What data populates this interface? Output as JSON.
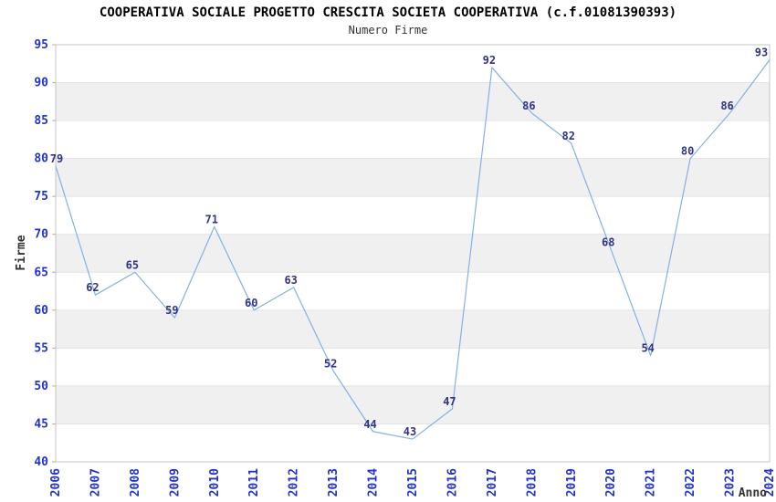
{
  "header": {
    "title": "COOPERATIVA SOCIALE PROGETTO CRESCITA SOCIETA COOPERATIVA (c.f.01081390393)",
    "subtitle": "Numero Firme"
  },
  "chart_data": {
    "type": "line",
    "title": "COOPERATIVA SOCIALE PROGETTO CRESCITA SOCIETA COOPERATIVA (c.f.01081390393)",
    "subtitle": "Numero Firme",
    "xlabel": "Anno",
    "ylabel": "Firme",
    "categories": [
      "2006",
      "2007",
      "2008",
      "2009",
      "2010",
      "2011",
      "2012",
      "2013",
      "2014",
      "2015",
      "2016",
      "2017",
      "2018",
      "2019",
      "2020",
      "2021",
      "2022",
      "2023",
      "2024"
    ],
    "series": [
      {
        "name": "Numero Firme",
        "values": [
          79,
          62,
          65,
          59,
          71,
          60,
          63,
          52,
          44,
          43,
          47,
          92,
          86,
          82,
          68,
          54,
          80,
          86,
          93
        ]
      }
    ],
    "ylim": [
      40,
      95
    ],
    "yticks": [
      40,
      45,
      50,
      55,
      60,
      65,
      70,
      75,
      80,
      85,
      90,
      95
    ],
    "ytick_step": 5,
    "grid": "alternating-horizontal-bands",
    "legend_position": "none",
    "data_labels": true,
    "x_tick_rotation": -90,
    "markers": "none",
    "colors": {
      "line": "#82b1e8",
      "data_label": "#333388",
      "tick_label": "#2233cc",
      "band": "#f0f0f0",
      "gridline": "#e3e3e3",
      "plot_border": "#c4c4c4",
      "axis_tick": "#b0b0b0",
      "axis_title": "#333333",
      "title": "#000000",
      "background": "#ffffff"
    }
  }
}
